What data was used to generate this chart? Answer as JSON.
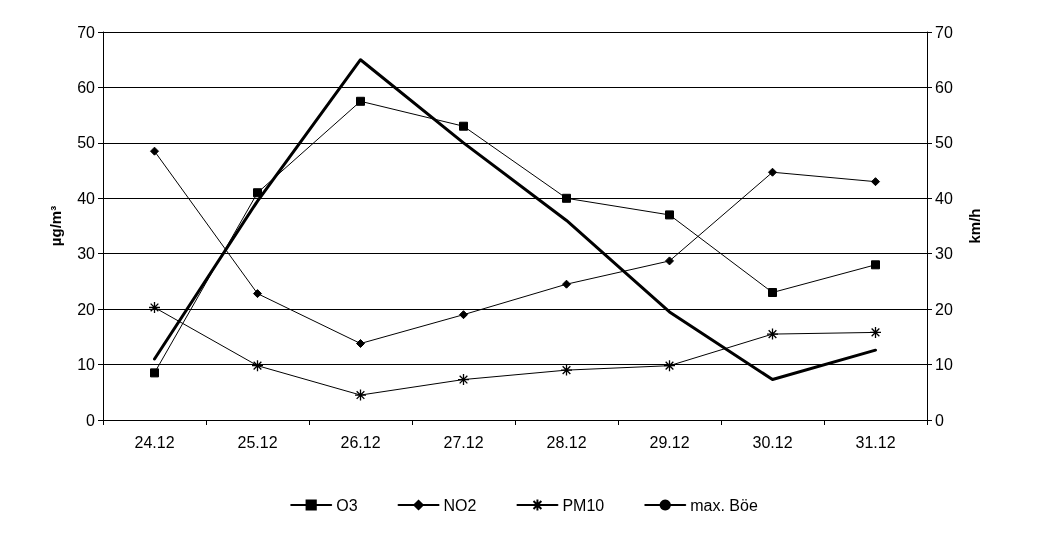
{
  "chart_data": {
    "type": "line",
    "ylabel": "µg/m³",
    "y2label": "km/h",
    "categories": [
      "24.12",
      "25.12",
      "26.12",
      "27.12",
      "28.12",
      "29.12",
      "30.12",
      "31.12"
    ],
    "ylim": [
      0,
      70
    ],
    "yticks": [
      0,
      10,
      20,
      30,
      40,
      50,
      60,
      70
    ],
    "y2lim": [
      0,
      70
    ],
    "y2ticks": [
      0,
      10,
      20,
      30,
      40,
      50,
      60,
      70
    ],
    "grid": "y",
    "legend": "bottom",
    "line_style": "solid",
    "series": [
      {
        "name": "O3",
        "color": "#000000",
        "marker": "square",
        "values": [
          8.5,
          41,
          57.5,
          53,
          40,
          37,
          23,
          28
        ]
      },
      {
        "name": "NO2",
        "color": "#000000",
        "marker": "diamond",
        "values": [
          48.5,
          22.8,
          13.8,
          19,
          24.5,
          28.7,
          44.7,
          43
        ]
      },
      {
        "name": "PM10",
        "color": "#000000",
        "marker": "cross",
        "values": [
          20.3,
          9.8,
          4.5,
          7.3,
          9,
          9.8,
          15.5,
          15.8
        ]
      },
      {
        "name": "max. Böe",
        "color": "#000000",
        "marker": "none",
        "axis": "y2",
        "values": [
          11,
          39.5,
          65,
          50,
          36,
          19.5,
          7.3,
          12.6
        ]
      }
    ]
  }
}
